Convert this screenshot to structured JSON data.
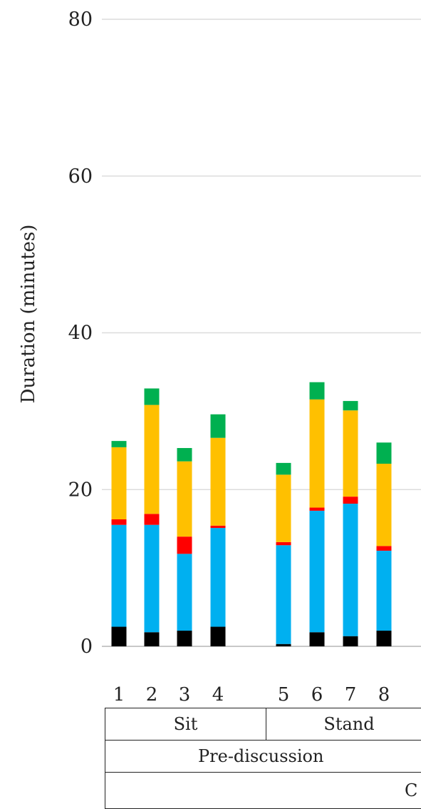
{
  "chart_data": {
    "type": "bar",
    "stacked": true,
    "ylabel": "Duration (minutes)",
    "ylim": [
      0,
      80
    ],
    "yticks": [
      0,
      20,
      40,
      60,
      80
    ],
    "grid": true,
    "categories": [
      "1",
      "2",
      "3",
      "4",
      "5",
      "6",
      "7",
      "8"
    ],
    "groups": {
      "level1": [
        {
          "label": "Sit",
          "categories": [
            "1",
            "2",
            "3",
            "4"
          ]
        },
        {
          "label": "Stand",
          "categories": [
            "5",
            "6",
            "7",
            "8"
          ]
        }
      ],
      "level2": [
        {
          "label": "Pre-discussion"
        }
      ],
      "level3": [
        {
          "label": "C"
        }
      ]
    },
    "series": [
      {
        "color": "#000000",
        "values": [
          2.5,
          1.8,
          2.0,
          2.5,
          0.3,
          1.8,
          1.3,
          2.0
        ]
      },
      {
        "color": "#00b0f0",
        "values": [
          13.0,
          13.7,
          9.8,
          12.6,
          12.6,
          15.5,
          16.9,
          10.2
        ]
      },
      {
        "color": "#ff0000",
        "values": [
          0.7,
          1.4,
          2.2,
          0.3,
          0.4,
          0.4,
          0.9,
          0.6
        ]
      },
      {
        "color": "#ffc000",
        "values": [
          9.2,
          13.9,
          9.6,
          11.2,
          8.6,
          13.8,
          11.0,
          10.5
        ]
      },
      {
        "color": "#00b050",
        "values": [
          0.8,
          2.1,
          1.7,
          3.0,
          1.5,
          2.2,
          1.2,
          2.7
        ]
      }
    ]
  }
}
